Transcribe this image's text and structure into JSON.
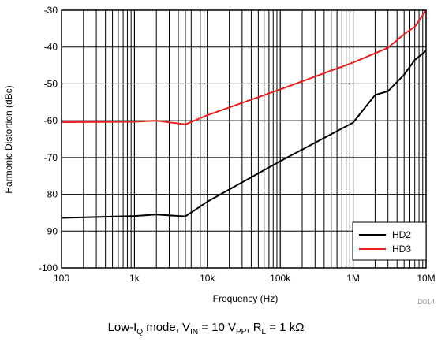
{
  "chart_data": {
    "type": "line",
    "xscale": "log",
    "xlim": [
      100,
      10000000
    ],
    "ylim": [
      -100,
      -30
    ],
    "xticks": [
      100,
      1000,
      10000,
      100000,
      1000000,
      10000000
    ],
    "xtick_labels": [
      "100",
      "1k",
      "10k",
      "100k",
      "1M",
      "10M"
    ],
    "yticks": [
      -30,
      -40,
      -50,
      -60,
      -70,
      -80,
      -90,
      -100
    ],
    "ytick_labels": [
      "-30",
      "-40",
      "-50",
      "-60",
      "-70",
      "-80",
      "-90",
      "-100"
    ],
    "xlabel": "Frequency (Hz)",
    "ylabel": "Harmonic Distortion (dBc)",
    "grid": true,
    "legend_position": "bottom-right",
    "figure_id": "D014",
    "caption": {
      "t1": "Low-I",
      "s1": "Q",
      "t2": " mode, V",
      "s2": "IN",
      "t3": " = 10 V",
      "s3": "PP",
      "t4": ", R",
      "s4": "L",
      "t5": " = 1 kΩ"
    },
    "series": [
      {
        "name": "HD2",
        "color": "#000000",
        "points": [
          [
            100,
            -86.4
          ],
          [
            1000,
            -85.9
          ],
          [
            2000,
            -85.5
          ],
          [
            5000,
            -86
          ],
          [
            10000,
            -82
          ],
          [
            100000,
            -71
          ],
          [
            1000000,
            -60.5
          ],
          [
            2000000,
            -53
          ],
          [
            3000000,
            -52
          ],
          [
            5000000,
            -47.5
          ],
          [
            7000000,
            -43.5
          ],
          [
            10000000,
            -41
          ]
        ]
      },
      {
        "name": "HD3",
        "color": "#e8201f",
        "points": [
          [
            100,
            -60.4
          ],
          [
            1000,
            -60.3
          ],
          [
            2000,
            -60
          ],
          [
            5000,
            -61
          ],
          [
            10000,
            -58.5
          ],
          [
            100000,
            -51.5
          ],
          [
            1000000,
            -44.2
          ],
          [
            3000000,
            -40.2
          ],
          [
            5000000,
            -36.5
          ],
          [
            7000000,
            -34.5
          ],
          [
            10000000,
            -30
          ]
        ]
      }
    ]
  }
}
